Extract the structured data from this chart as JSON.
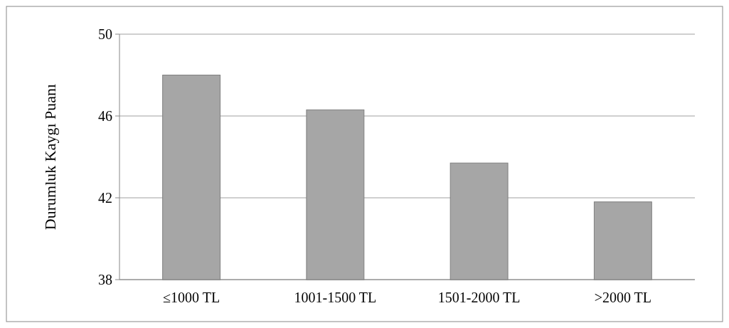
{
  "chart_data": {
    "type": "bar",
    "ylabel": "Durumluk Kaygı Puanı",
    "categories": [
      "≤1000 TL",
      "1001-1500 TL",
      "1501-2000 TL",
      ">2000 TL"
    ],
    "values": [
      48,
      46.3,
      43.7,
      41.8
    ],
    "color": "#a6a6a6",
    "ylim": [
      38,
      50
    ],
    "yticks": [
      38,
      42,
      46,
      50
    ],
    "grid": "y"
  }
}
